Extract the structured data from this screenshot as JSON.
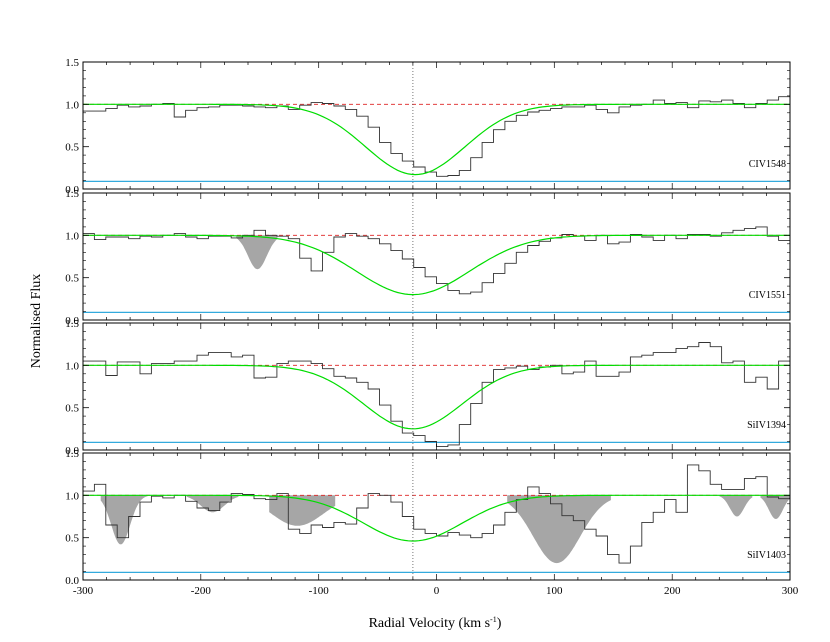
{
  "chart_data": {
    "type": "line",
    "xlabel": "Radial Velocity (km s",
    "xlabel_sup": "-1",
    "xlabel_close": ")",
    "ylabel": "Normalised Flux",
    "xlim": [
      -300,
      300
    ],
    "ylim": [
      0,
      1.5
    ],
    "x_ticks": [
      -300,
      -200,
      -100,
      0,
      100,
      200,
      300
    ],
    "y_ticks": [
      "0.0",
      "0.5",
      "1.0",
      "1.5"
    ],
    "marker_velocity": -20,
    "colors": {
      "data": "#333333",
      "fit": "#00dd00",
      "continuum": "#dd2222",
      "error": "#33aadd",
      "blend": "#a6a6a6",
      "marker": "#555555"
    },
    "panels": [
      {
        "label": "CIV1548",
        "fit": {
          "center": -18,
          "depth": 0.83,
          "sigma": 42
        },
        "flux": [
          0.92,
          0.92,
          0.95,
          0.99,
          0.97,
          0.98,
          1.0,
          1.01,
          0.85,
          0.93,
          0.96,
          0.97,
          0.99,
          0.99,
          0.98,
          0.97,
          0.96,
          0.98,
          0.94,
          0.99,
          1.02,
          1.01,
          0.98,
          0.94,
          0.86,
          0.73,
          0.55,
          0.42,
          0.33,
          0.26,
          0.2,
          0.15,
          0.16,
          0.22,
          0.37,
          0.55,
          0.7,
          0.8,
          0.87,
          0.91,
          0.93,
          0.95,
          0.97,
          0.97,
          0.99,
          0.94,
          0.9,
          0.97,
          0.99,
          1.0,
          1.05,
          1.01,
          1.02,
          0.96,
          1.04,
          1.03,
          1.05,
          1.01,
          0.96,
          1.01,
          1.05,
          1.09
        ],
        "blends": []
      },
      {
        "label": "CIV1551",
        "fit": {
          "center": -20,
          "depth": 0.7,
          "sigma": 48
        },
        "flux": [
          1.02,
          0.95,
          0.98,
          0.98,
          0.96,
          0.99,
          0.98,
          1.0,
          1.02,
          0.98,
          0.96,
          0.99,
          0.99,
          0.97,
          1.0,
          1.06,
          1.0,
          0.99,
          0.96,
          0.73,
          0.58,
          0.8,
          0.98,
          1.02,
          0.99,
          0.96,
          0.9,
          0.82,
          0.72,
          0.62,
          0.51,
          0.43,
          0.35,
          0.31,
          0.33,
          0.44,
          0.55,
          0.67,
          0.8,
          0.88,
          0.93,
          0.97,
          1.01,
          0.99,
          0.94,
          1.0,
          0.9,
          0.92,
          1.01,
          0.98,
          0.94,
          1.0,
          0.96,
          1.01,
          1.01,
          0.99,
          1.03,
          1.06,
          1.08,
          1.1,
          0.99,
          0.94
        ],
        "blends": [
          {
            "x": [
              -170,
              -135
            ],
            "depth": 0.4,
            "center": -152,
            "sigma": 8
          }
        ]
      },
      {
        "label": "SiIV1394",
        "fit": {
          "center": -20,
          "depth": 0.75,
          "sigma": 42
        },
        "flux": [
          1.05,
          1.05,
          0.88,
          1.04,
          1.04,
          0.9,
          1.02,
          1.02,
          1.05,
          1.05,
          1.12,
          1.15,
          1.15,
          1.1,
          1.12,
          0.85,
          0.86,
          1.02,
          1.05,
          1.05,
          1.02,
          0.96,
          0.87,
          0.85,
          0.8,
          0.72,
          0.53,
          0.34,
          0.2,
          0.17,
          0.1,
          0.04,
          0.06,
          0.3,
          0.55,
          0.8,
          0.95,
          0.97,
          0.99,
          0.95,
          0.98,
          1.0,
          0.9,
          0.92,
          1.05,
          0.87,
          0.87,
          0.92,
          1.1,
          1.12,
          1.15,
          1.15,
          1.2,
          1.22,
          1.27,
          1.22,
          1.03,
          1.05,
          0.8,
          0.86,
          0.72,
          1.05
        ],
        "blends": []
      },
      {
        "label": "SiIV1403",
        "fit": {
          "center": -20,
          "depth": 0.54,
          "sigma": 42
        },
        "flux": [
          1.05,
          1.13,
          0.65,
          0.5,
          0.75,
          0.92,
          0.99,
          0.97,
          1.0,
          0.93,
          0.85,
          0.82,
          0.92,
          1.02,
          1.01,
          0.96,
          0.95,
          1.02,
          0.6,
          0.55,
          0.65,
          0.62,
          0.68,
          0.66,
          0.85,
          1.02,
          1.0,
          0.92,
          0.75,
          0.6,
          0.55,
          0.52,
          0.56,
          0.53,
          0.5,
          0.55,
          0.65,
          0.8,
          0.95,
          1.1,
          1.02,
          0.9,
          0.76,
          0.7,
          0.6,
          0.52,
          0.3,
          0.2,
          0.4,
          0.68,
          0.8,
          0.95,
          0.8,
          1.36,
          1.29,
          1.13,
          1.07,
          1.07,
          1.2,
          1.22,
          0.98,
          0.96
        ],
        "blends": [
          {
            "x": [
              -285,
              -245
            ],
            "depth": 0.58,
            "center": -268,
            "sigma": 8
          },
          {
            "x": [
              -212,
              -168
            ],
            "depth": 0.2,
            "center": -190,
            "sigma": 10
          },
          {
            "x": [
              -142,
              -86
            ],
            "depth": 0.36,
            "center": -118,
            "sigma": 22
          },
          {
            "x": [
              60,
              148
            ],
            "depth": 0.8,
            "center": 102,
            "sigma": 20
          },
          {
            "x": [
              240,
              268
            ],
            "depth": 0.25,
            "center": 255,
            "sigma": 6
          },
          {
            "x": [
              275,
              300
            ],
            "depth": 0.28,
            "center": 288,
            "sigma": 6
          }
        ]
      }
    ]
  }
}
